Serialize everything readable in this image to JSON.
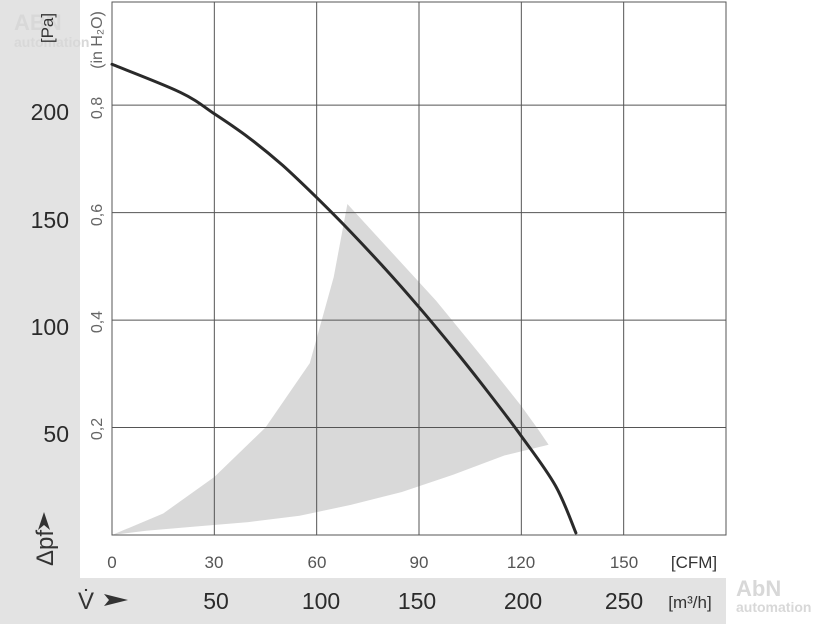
{
  "chart_data": {
    "type": "line",
    "title": "",
    "x_axes": {
      "cfm": {
        "unit": "[CFM]",
        "range": [
          0,
          180
        ],
        "ticks": [
          "0",
          "30",
          "60",
          "90",
          "120",
          "150"
        ]
      },
      "m3h": {
        "symbol": "V̇",
        "unit": "[m³/h]",
        "ticks": [
          "50",
          "100",
          "150",
          "200",
          "250"
        ]
      }
    },
    "y_axes": {
      "pa": {
        "symbol": "Δpf",
        "unit": "[Pa]",
        "range": [
          0,
          248
        ],
        "ticks": [
          "50",
          "100",
          "150",
          "200"
        ]
      },
      "inh2o": {
        "unit": "(in H₂O)",
        "ticks": [
          "0,2",
          "0,4",
          "0,6",
          "0,8"
        ]
      }
    },
    "grid": true,
    "series": [
      {
        "x_unit": "CFM",
        "y_unit": "Pa",
        "x": [
          0,
          20,
          30,
          40,
          50,
          60,
          70,
          80,
          90,
          100,
          110,
          120,
          130,
          136
        ],
        "y": [
          219,
          206,
          196,
          185,
          172,
          157,
          141,
          124,
          106,
          87,
          67,
          46,
          23,
          1
        ]
      }
    ],
    "operating_range": {
      "x": [
        0,
        15,
        30,
        45,
        58,
        65,
        69,
        80,
        95,
        110,
        120,
        125,
        128,
        115,
        100,
        85,
        70,
        55,
        40,
        25,
        10,
        0
      ],
      "y": [
        0,
        10,
        27,
        50,
        80,
        120,
        154,
        135,
        109,
        80,
        60,
        49,
        42,
        37,
        28,
        20,
        14,
        9,
        6,
        4,
        2,
        0
      ]
    },
    "colors": {
      "curve": "#2a2a2a",
      "range": "#d9d9d9",
      "grid": "#555555",
      "band": "#e3e3e3"
    }
  },
  "watermark": {
    "top": [
      "ABN",
      "automation"
    ],
    "bottom": [
      "AbN",
      "automation"
    ]
  }
}
